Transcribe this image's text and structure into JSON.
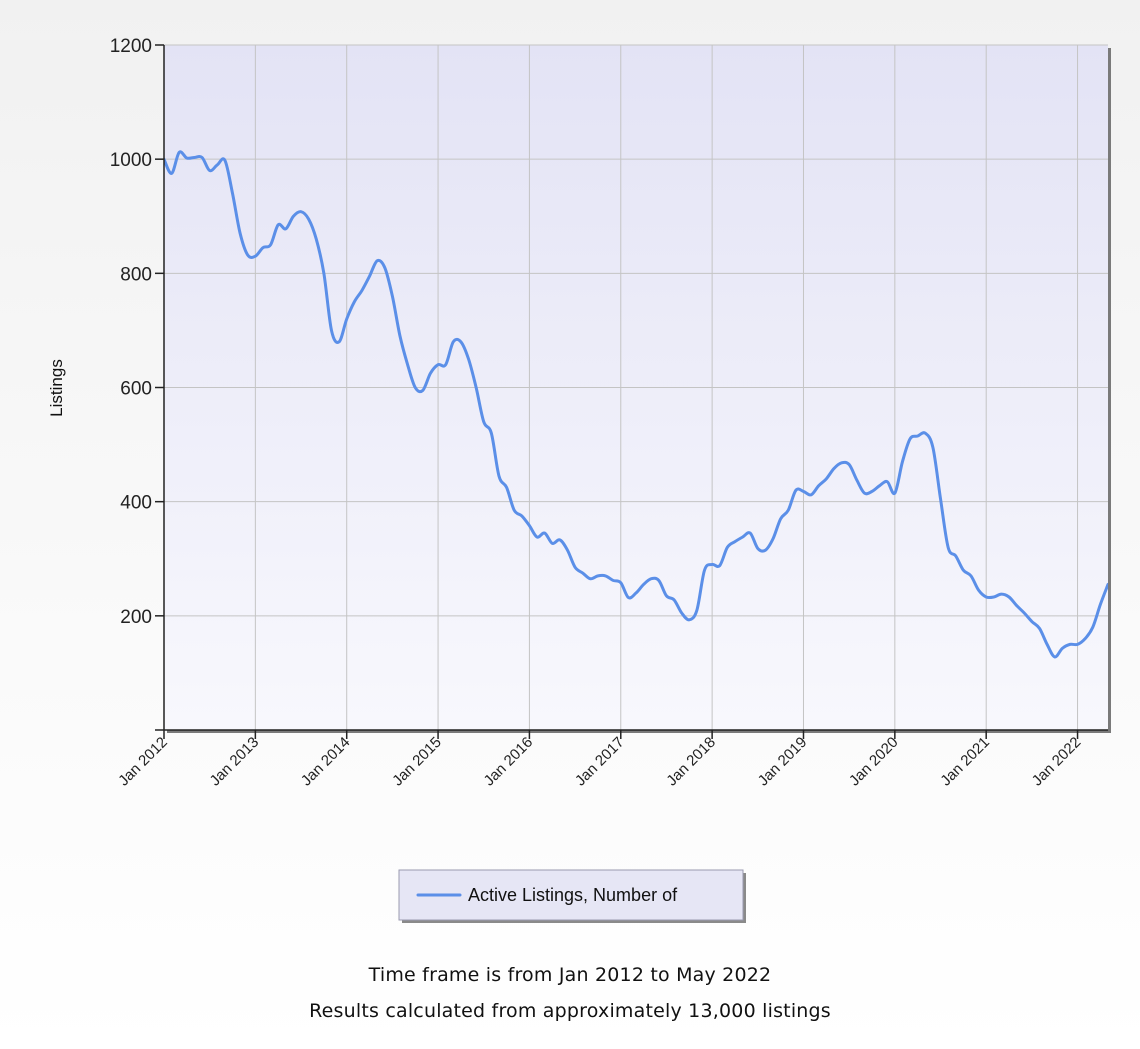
{
  "chart_data": {
    "type": "line",
    "ylabel": "Listings",
    "ylim": [
      0,
      1200
    ],
    "yticks": [
      200,
      400,
      600,
      800,
      1000,
      1200
    ],
    "xlim": [
      "2012-01",
      "2022-05"
    ],
    "xticks": [
      "Jan 2012",
      "Jan 2013",
      "Jan 2014",
      "Jan 2015",
      "Jan 2016",
      "Jan 2017",
      "Jan 2018",
      "Jan 2019",
      "Jan 2020",
      "Jan 2021",
      "Jan 2022"
    ],
    "grid": true,
    "legend": "bottom-center",
    "series": [
      {
        "name": "Active Listings, Number of",
        "color": "#5b8fe8",
        "x": [
          "2012-01",
          "2012-02",
          "2012-03",
          "2012-04",
          "2012-05",
          "2012-06",
          "2012-07",
          "2012-08",
          "2012-09",
          "2012-10",
          "2012-11",
          "2012-12",
          "2013-01",
          "2013-02",
          "2013-03",
          "2013-04",
          "2013-05",
          "2013-06",
          "2013-07",
          "2013-08",
          "2013-09",
          "2013-10",
          "2013-11",
          "2013-12",
          "2014-01",
          "2014-02",
          "2014-03",
          "2014-04",
          "2014-05",
          "2014-06",
          "2014-07",
          "2014-08",
          "2014-09",
          "2014-10",
          "2014-11",
          "2014-12",
          "2015-01",
          "2015-02",
          "2015-03",
          "2015-04",
          "2015-05",
          "2015-06",
          "2015-07",
          "2015-08",
          "2015-09",
          "2015-10",
          "2015-11",
          "2015-12",
          "2016-01",
          "2016-02",
          "2016-03",
          "2016-04",
          "2016-05",
          "2016-06",
          "2016-07",
          "2016-08",
          "2016-09",
          "2016-10",
          "2016-11",
          "2016-12",
          "2017-01",
          "2017-02",
          "2017-03",
          "2017-04",
          "2017-05",
          "2017-06",
          "2017-07",
          "2017-08",
          "2017-09",
          "2017-10",
          "2017-11",
          "2017-12",
          "2018-01",
          "2018-02",
          "2018-03",
          "2018-04",
          "2018-05",
          "2018-06",
          "2018-07",
          "2018-08",
          "2018-09",
          "2018-10",
          "2018-11",
          "2018-12",
          "2019-01",
          "2019-02",
          "2019-03",
          "2019-04",
          "2019-05",
          "2019-06",
          "2019-07",
          "2019-08",
          "2019-09",
          "2019-10",
          "2019-11",
          "2019-12",
          "2020-01",
          "2020-02",
          "2020-03",
          "2020-04",
          "2020-05",
          "2020-06",
          "2020-07",
          "2020-08",
          "2020-09",
          "2020-10",
          "2020-11",
          "2020-12",
          "2021-01",
          "2021-02",
          "2021-03",
          "2021-04",
          "2021-05",
          "2021-06",
          "2021-07",
          "2021-08",
          "2021-09",
          "2021-10",
          "2021-11",
          "2021-12",
          "2022-01",
          "2022-02",
          "2022-03",
          "2022-04",
          "2022-05"
        ],
        "values": [
          1000,
          975,
          1012,
          1002,
          1003,
          1003,
          980,
          990,
          998,
          940,
          870,
          832,
          830,
          845,
          850,
          885,
          878,
          900,
          908,
          895,
          860,
          800,
          700,
          680,
          720,
          750,
          770,
          795,
          822,
          810,
          760,
          690,
          640,
          600,
          595,
          625,
          640,
          640,
          680,
          680,
          650,
          600,
          540,
          520,
          445,
          425,
          385,
          375,
          358,
          338,
          345,
          327,
          333,
          315,
          285,
          275,
          265,
          270,
          270,
          262,
          258,
          232,
          240,
          255,
          265,
          262,
          235,
          228,
          205,
          193,
          210,
          280,
          290,
          288,
          320,
          330,
          338,
          345,
          318,
          315,
          335,
          370,
          385,
          420,
          418,
          412,
          428,
          440,
          458,
          468,
          465,
          438,
          415,
          418,
          428,
          435,
          415,
          470,
          510,
          515,
          520,
          495,
          405,
          320,
          305,
          280,
          270,
          245,
          233,
          233,
          238,
          233,
          218,
          205,
          190,
          178,
          150,
          128,
          143,
          150,
          150,
          160,
          180,
          220,
          255
        ]
      }
    ]
  },
  "footnotes": {
    "line1": "Time frame is from Jan 2012 to May 2022",
    "line2": "Results calculated from approximately 13,000 listings"
  }
}
